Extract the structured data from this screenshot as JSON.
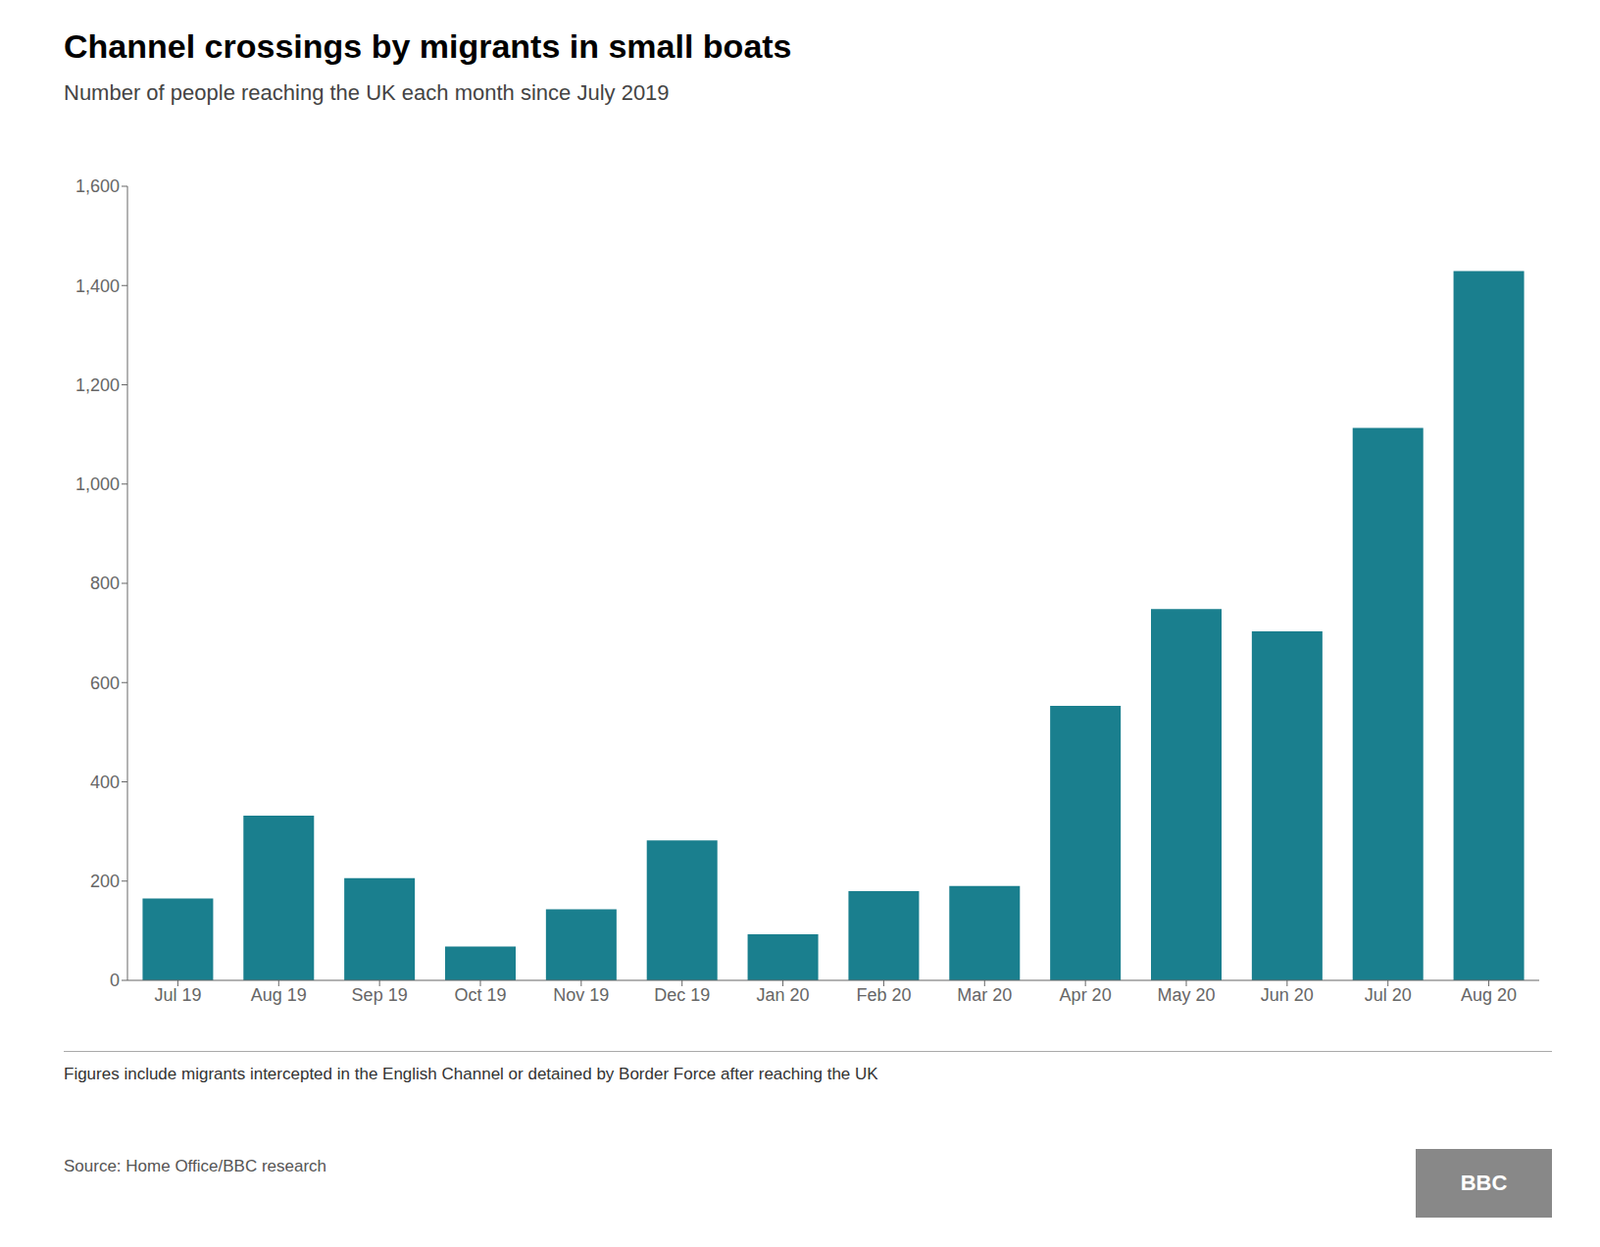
{
  "chart_data": {
    "type": "bar",
    "title": "Channel crossings by migrants in small boats",
    "subtitle": "Number of people reaching the UK each month since July 2019",
    "footnote": "Figures include migrants intercepted in the English Channel or detained by Border Force after reaching the UK",
    "source": "Source: Home Office/BBC research",
    "annotations": [
      "BBC"
    ],
    "categories": [
      "Jul 19",
      "Aug 19",
      "Sep 19",
      "Oct 19",
      "Nov 19",
      "Dec 19",
      "Jan 20",
      "Feb 20",
      "Mar 20",
      "Apr 20",
      "May 20",
      "Jun 20",
      "Jul 20",
      "Aug 20"
    ],
    "values": [
      165,
      332,
      206,
      68,
      143,
      282,
      93,
      180,
      190,
      553,
      748,
      703,
      1113,
      1429
    ],
    "color": "#1a7f8e",
    "ylim": [
      0,
      1600
    ],
    "yticks": [
      0,
      200,
      400,
      600,
      800,
      {
        "value": 1000,
        "label": "1,000"
      },
      {
        "value": 1200,
        "label": "1,200"
      },
      {
        "value": 1400,
        "label": "1,400"
      },
      {
        "value": 1600,
        "label": "1,600"
      }
    ],
    "grid": false
  }
}
